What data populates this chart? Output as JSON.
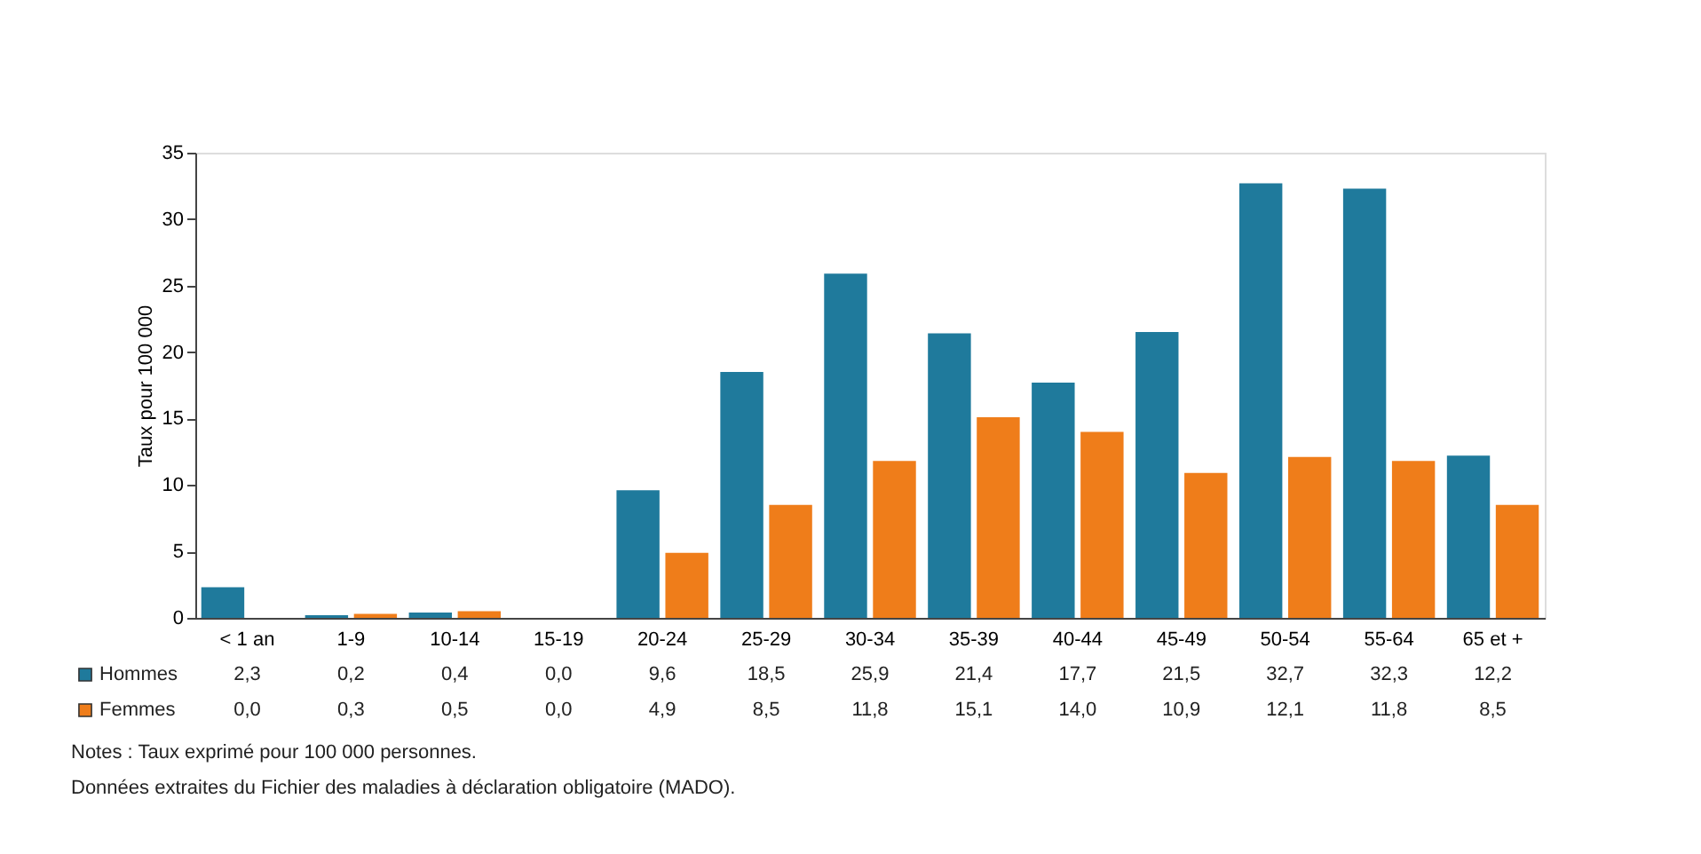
{
  "chart_data": {
    "type": "bar",
    "ylabel": "Taux pour 100 000",
    "categories": [
      "< 1 an",
      "1-9",
      "10-14",
      "15-19",
      "20-24",
      "25-29",
      "30-34",
      "35-39",
      "40-44",
      "45-49",
      "50-54",
      "55-64",
      "65 et +"
    ],
    "series": [
      {
        "name": "Hommes",
        "color": "#1f7a9c",
        "values": [
          2.3,
          0.2,
          0.4,
          0.0,
          9.6,
          18.5,
          25.9,
          21.4,
          17.7,
          21.5,
          32.7,
          32.3,
          12.2
        ],
        "value_labels": [
          "2,3",
          "0,2",
          "0,4",
          "0,0",
          "9,6",
          "18,5",
          "25,9",
          "21,4",
          "17,7",
          "21,5",
          "32,7",
          "32,3",
          "12,2"
        ]
      },
      {
        "name": "Femmes",
        "color": "#ef7d1a",
        "values": [
          0.0,
          0.3,
          0.5,
          0.0,
          4.9,
          8.5,
          11.8,
          15.1,
          14.0,
          10.9,
          12.1,
          11.8,
          8.5
        ],
        "value_labels": [
          "0,0",
          "0,3",
          "0,5",
          "0,0",
          "4,9",
          "8,5",
          "11,8",
          "15,1",
          "14,0",
          "10,9",
          "12,1",
          "11,8",
          "8,5"
        ]
      }
    ],
    "ylim": [
      0,
      35
    ],
    "yticks": [
      0,
      5,
      10,
      15,
      20,
      25,
      30,
      35
    ],
    "grid": false,
    "legend": "bottom left",
    "annotations": [
      "Notes : Taux exprimé pour 100 000 personnes.",
      "Données extraites du Fichier des maladies à déclaration obligatoire (MADO)."
    ]
  }
}
